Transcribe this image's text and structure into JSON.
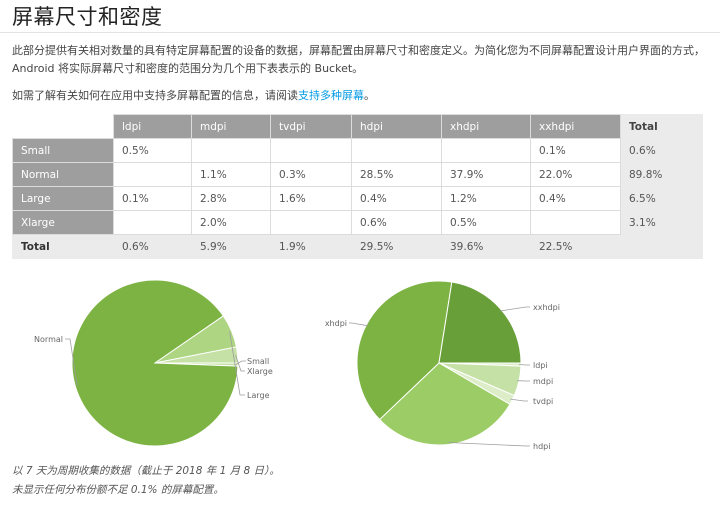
{
  "page": {
    "title": "屏幕尺寸和密度",
    "intro": "此部分提供有关相对数量的具有特定屏幕配置的设备的数据，屏幕配置由屏幕尺寸和密度定义。为简化您为不同屏幕配置设计用户界面的方式，Android 将实际屏幕尺寸和密度的范围分为几个用下表表示的 Bucket。",
    "info_prefix": "如需了解有关如何在应用中支持多屏幕配置的信息，请阅读",
    "info_link": "支持多种屏幕",
    "info_suffix": "。",
    "footnote_line1": "以 7 天为周期收集的数据（截止于 2018 年 1 月 8 日）。",
    "footnote_line2": "未显示任何分布份额不足 0.1% 的屏幕配置。"
  },
  "table": {
    "columns": [
      "ldpi",
      "mdpi",
      "tvdpi",
      "hdpi",
      "xhdpi",
      "xxhdpi"
    ],
    "total_header": "Total",
    "rows": [
      {
        "label": "Small",
        "cells": [
          "0.5%",
          "",
          "",
          "",
          "",
          "0.1%"
        ],
        "total": "0.6%"
      },
      {
        "label": "Normal",
        "cells": [
          "",
          "1.1%",
          "0.3%",
          "28.5%",
          "37.9%",
          "22.0%"
        ],
        "total": "89.8%"
      },
      {
        "label": "Large",
        "cells": [
          "0.1%",
          "2.8%",
          "1.6%",
          "0.4%",
          "1.2%",
          "0.4%"
        ],
        "total": "6.5%"
      },
      {
        "label": "Xlarge",
        "cells": [
          "",
          "2.0%",
          "",
          "0.6%",
          "0.5%",
          ""
        ],
        "total": "3.1%"
      }
    ],
    "total_row": {
      "label": "Total",
      "cells": [
        "0.6%",
        "5.9%",
        "1.9%",
        "29.5%",
        "39.6%",
        "22.5%"
      ]
    }
  },
  "chart_data": [
    {
      "type": "pie",
      "categories": [
        "Small",
        "Normal",
        "Large",
        "Xlarge"
      ],
      "values": [
        0.6,
        89.8,
        6.5,
        3.1
      ],
      "colors": [
        "#c5e1a5",
        "#7cb342",
        "#aed581",
        "#c5e1a5"
      ]
    },
    {
      "type": "pie",
      "categories": [
        "ldpi",
        "mdpi",
        "tvdpi",
        "hdpi",
        "xhdpi",
        "xxhdpi"
      ],
      "values": [
        0.6,
        5.9,
        1.9,
        29.5,
        39.6,
        22.5
      ],
      "colors": [
        "#dcedc8",
        "#c5e1a5",
        "#dcedc8",
        "#9ccc65",
        "#7cb342",
        "#689f38"
      ]
    }
  ]
}
